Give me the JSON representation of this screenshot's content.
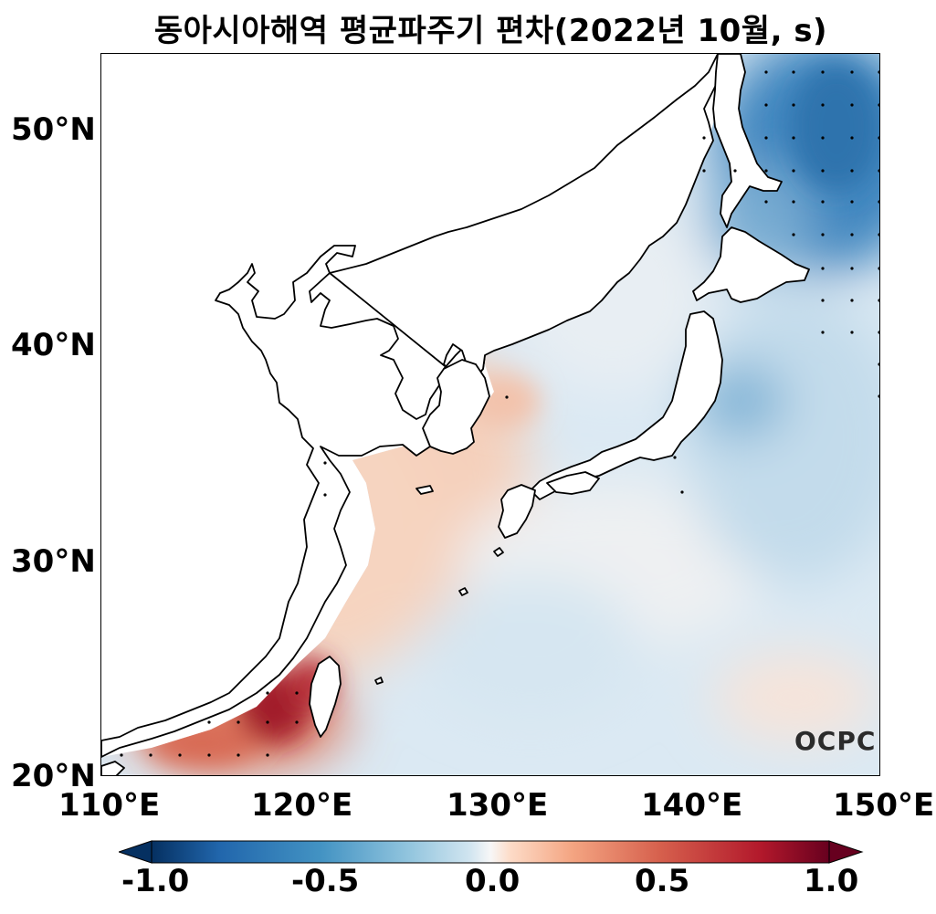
{
  "title": "동아시아해역 평균파주기 편차(2022년 10월, s)",
  "y_axis": {
    "ticks": [
      "50°N",
      "40°N",
      "30°N",
      "20°N"
    ]
  },
  "x_axis": {
    "ticks": [
      "110°E",
      "120°E",
      "130°E",
      "140°E",
      "150°E"
    ]
  },
  "colorbar": {
    "ticks": [
      "-1.0",
      "-0.5",
      "0.0",
      "0.5",
      "1.0"
    ],
    "range": [
      -1.0,
      1.0
    ],
    "colormap": "RdBu_r",
    "extend": "both"
  },
  "logo": "OCPC",
  "map": {
    "lon_range": [
      110,
      150
    ],
    "lat_range": [
      20,
      53.5
    ],
    "colors": {
      "strong_negative": "#1f5f9e",
      "negative": "#8fbfdc",
      "weak_negative": "#d4e6f1",
      "neutral": "#f4f1ee",
      "weak_positive": "#f6d2bf",
      "positive": "#e58a6d",
      "strong_positive": "#8b0a1f"
    }
  }
}
